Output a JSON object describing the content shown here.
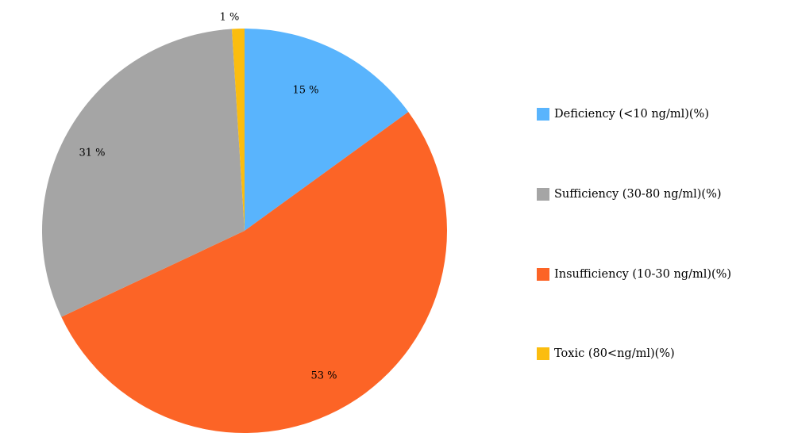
{
  "chart_data": {
    "type": "pie",
    "start_angle_deg": 0,
    "direction": "clockwise",
    "slices": [
      {
        "name": "Deficiency (<10 ng/ml)(%)",
        "value": 15,
        "label": "15 %",
        "color": "#59b4fd"
      },
      {
        "name": "Insufficiency (10-30 ng/ml)(%)",
        "value": 53,
        "label": "53 %",
        "color": "#fc6426"
      },
      {
        "name": "Sufficiency (30-80 ng/ml)(%)",
        "value": 31,
        "label": "31 %",
        "color": "#a5a5a5"
      },
      {
        "name": "Toxic (80<ng/ml)(%)",
        "value": 1,
        "label": "1 %",
        "color": "#fbbd0f"
      }
    ],
    "legend": {
      "placement": "right",
      "entries": [
        {
          "label": "Deficiency (<10 ng/ml)(%)",
          "color": "#59b4fd"
        },
        {
          "label": "Sufficiency (30-80 ng/ml)(%)",
          "color": "#a5a5a5"
        },
        {
          "label": "Insufficiency (10-30 ng/ml)(%)",
          "color": "#fc6426"
        },
        {
          "label": "Toxic (80<ng/ml)(%)",
          "color": "#fbbd0f"
        }
      ]
    }
  }
}
